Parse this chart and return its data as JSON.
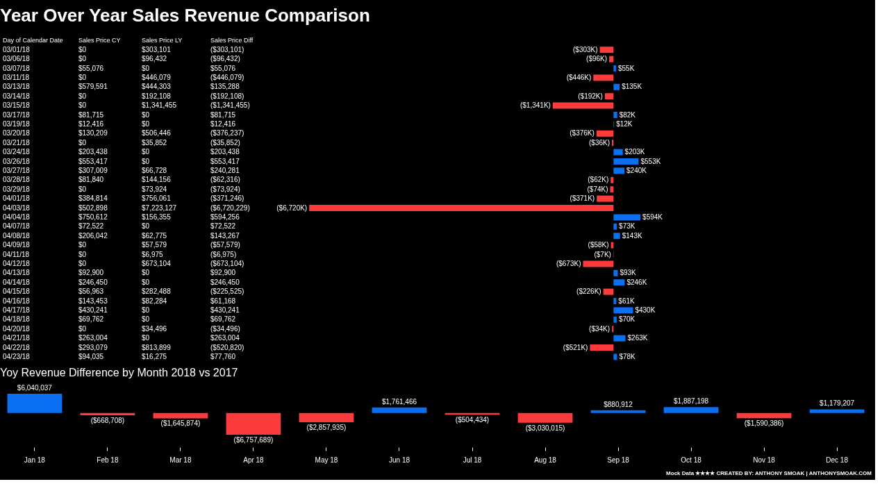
{
  "chart_data": [
    {
      "type": "other",
      "title": "Year Over Year Sales Revenue Comparison",
      "categories": [
        "Sales Price CY",
        "Sales Price LY",
        "Sales Price Diff"
      ],
      "cell_labels": [
        [
          "$0",
          "$303,101",
          "($303,101)"
        ],
        [
          "$0",
          "$96,432",
          "($96,432)"
        ],
        [
          "$55,076",
          "$0",
          "$55,076"
        ],
        [
          "$0",
          "$446,079",
          "($446,079)"
        ],
        [
          "$579,591",
          "$444,303",
          "$135,288"
        ],
        [
          "$0",
          "$192,108",
          "($192,108)"
        ],
        [
          "$0",
          "$1,341,455",
          "($1,341,455)"
        ],
        [
          "$81,715",
          "$0",
          "$81,715"
        ],
        [
          "$12,416",
          "$0",
          "$12,416"
        ],
        [
          "$130,209",
          "$506,446",
          "($376,237)"
        ],
        [
          "$0",
          "$35,852",
          "($35,852)"
        ],
        [
          "$203,438",
          "$0",
          "$203,438"
        ],
        [
          "$553,417",
          "$0",
          "$553,417"
        ],
        [
          "$307,009",
          "$66,728",
          "$240,281"
        ],
        [
          "$81,840",
          "$144,156",
          "($62,316)"
        ],
        [
          "$0",
          "$73,924",
          "($73,924)"
        ],
        [
          "$384,814",
          "$756,061",
          "($371,246)"
        ],
        [
          "$502,898",
          "$7,223,127",
          "($6,720,229)"
        ],
        [
          "$750,612",
          "$156,355",
          "$594,256"
        ],
        [
          "$72,522",
          "$0",
          "$72,522"
        ],
        [
          "$206,042",
          "$62,775",
          "$143,267"
        ],
        [
          "$0",
          "$57,579",
          "($57,579)"
        ],
        [
          "$0",
          "$6,975",
          "($6,975)"
        ],
        [
          "$0",
          "$673,104",
          "($673,104)"
        ],
        [
          "$92,900",
          "$0",
          "$92,900"
        ],
        [
          "$246,450",
          "$0",
          "$246,450"
        ],
        [
          "$56,963",
          "$282,488",
          "($225,525)"
        ],
        [
          "$143,453",
          "$82,284",
          "$61,168"
        ],
        [
          "$430,241",
          "$0",
          "$430,241"
        ],
        [
          "$69,762",
          "$0",
          "$69,762"
        ],
        [
          "$0",
          "$34,496",
          "($34,496)"
        ],
        [
          "$263,004",
          "$0",
          "$263,004"
        ],
        [
          "$293,079",
          "$813,899",
          "($520,820)"
        ],
        [
          "$94,035",
          "$16,275",
          "$77,760"
        ]
      ]
    },
    {
      "type": "bar",
      "orientation": "horizontal",
      "ylabel": "Day of Calendar Date",
      "categories": [
        "03/01/18",
        "03/06/18",
        "03/07/18",
        "03/11/18",
        "03/13/18",
        "03/14/18",
        "03/15/18",
        "03/17/18",
        "03/19/18",
        "03/20/18",
        "03/21/18",
        "03/24/18",
        "03/26/18",
        "03/27/18",
        "03/28/18",
        "03/29/18",
        "04/01/18",
        "04/03/18",
        "04/04/18",
        "04/07/18",
        "04/08/18",
        "04/09/18",
        "04/11/18",
        "04/12/18",
        "04/13/18",
        "04/14/18",
        "04/15/18",
        "04/16/18",
        "04/17/18",
        "04/18/18",
        "04/20/18",
        "04/21/18",
        "04/22/18",
        "04/23/18"
      ],
      "values": [
        -303101,
        -96432,
        55076,
        -446079,
        135288,
        -192108,
        -1341455,
        81715,
        12416,
        -376237,
        -35852,
        203438,
        553417,
        240281,
        -62316,
        -73924,
        -371246,
        -6720229,
        594256,
        72522,
        143267,
        -57579,
        -6975,
        -673104,
        92900,
        246450,
        -225525,
        61168,
        430241,
        69762,
        -34496,
        263004,
        -520820,
        77760
      ],
      "value_labels": [
        "($303K)",
        "($96K)",
        "$55K",
        "($446K)",
        "$135K",
        "($192K)",
        "($1,341K)",
        "$82K",
        "$12K",
        "($376K)",
        "($36K)",
        "$203K",
        "$553K",
        "$240K",
        "($62K)",
        "($74K)",
        "($371K)",
        "($6,720K)",
        "$594K",
        "$73K",
        "$143K",
        "($58K)",
        "($7K)",
        "($673K)",
        "$93K",
        "$246K",
        "($226K)",
        "$61K",
        "$430K",
        "$70K",
        "($34K)",
        "$263K",
        "($521K)",
        "$78K"
      ],
      "colors": [
        "#fc3c3c",
        "#fc3c3c",
        "#0b6ff2",
        "#fc3c3c",
        "#0b6ff2",
        "#fc3c3c",
        "#fc3c3c",
        "#0b6ff2",
        "#0b6ff2",
        "#fc3c3c",
        "#fc3c3c",
        "#0b6ff2",
        "#0b6ff2",
        "#0b6ff2",
        "#fc3c3c",
        "#fc3c3c",
        "#fc3c3c",
        "#fc3c3c",
        "#0b6ff2",
        "#0b6ff2",
        "#0b6ff2",
        "#fc3c3c",
        "#fc3c3c",
        "#fc3c3c",
        "#0b6ff2",
        "#0b6ff2",
        "#fc3c3c",
        "#0b6ff2",
        "#0b6ff2",
        "#0b6ff2",
        "#fc3c3c",
        "#0b6ff2",
        "#fc3c3c",
        "#0b6ff2"
      ],
      "xlim": [
        -6800000,
        5700000
      ]
    },
    {
      "type": "bar",
      "title": "Yoy Revenue Difference by Month 2018 vs 2017",
      "categories": [
        "Jan 18",
        "Feb 18",
        "Mar 18",
        "Apr 18",
        "May 18",
        "Jun 18",
        "Jul 18",
        "Aug 18",
        "Sep 18",
        "Oct 18",
        "Nov 18",
        "Dec 18"
      ],
      "values": [
        6040037,
        -668708,
        -1645874,
        -6757689,
        -2857935,
        1761466,
        -504434,
        -3030015,
        880912,
        1887198,
        -1590386,
        1179207
      ],
      "value_labels": [
        "$6,040,037",
        "($668,708)",
        "($1,645,874)",
        "($6,757,689)",
        "($2,857,935)",
        "$1,761,466",
        "($504,434)",
        "($3,030,015)",
        "$880,912",
        "$1,887,198",
        "($1,590,386)",
        "$1,179,207"
      ],
      "colors": [
        "#0b6ff2",
        "#fc3c3c",
        "#fc3c3c",
        "#fc3c3c",
        "#fc3c3c",
        "#0b6ff2",
        "#fc3c3c",
        "#fc3c3c",
        "#0b6ff2",
        "#0b6ff2",
        "#fc3c3c",
        "#0b6ff2"
      ],
      "annotations": [
        "Mock Data ★★★★ CREATED BY: ANTHONY SMOAK | ANTHONYSMOAK.COM"
      ]
    }
  ]
}
